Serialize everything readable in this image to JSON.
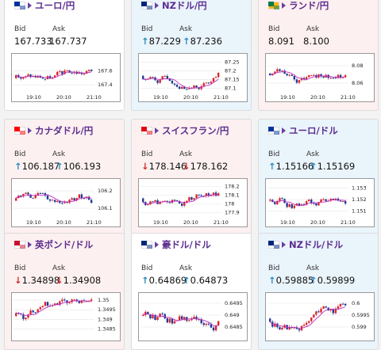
{
  "labels": {
    "bid": "Bid",
    "ask": "Ask"
  },
  "colors": {
    "up": "#2e8bbf",
    "down": "#d3312e",
    "title": "#5b2d8e",
    "candle_up": "#d9262c",
    "candle_down": "#1f3a93",
    "ma": "#c02fc0"
  },
  "cards": [
    {
      "title": "ユーロ/円",
      "flag": "eu",
      "bid": "167.733",
      "ask": "167.737",
      "dir": "",
      "bg": "white",
      "x_ticks": [
        "19:10",
        "20:10",
        "21:10"
      ],
      "y_ticks": [
        "167.6",
        "167.4"
      ],
      "y_range": [
        167.3,
        167.8
      ],
      "seed": 3
    },
    {
      "title": "NZドル/円",
      "flag": "nz",
      "bid": "87.229",
      "ask": "87.236",
      "dir": "up",
      "bg": "blue",
      "x_ticks": [
        "19:10",
        "20:10",
        "21:10"
      ],
      "y_ticks": [
        "87.25",
        "87.2",
        "87.15",
        "87.1"
      ],
      "y_range": [
        87.08,
        87.28
      ],
      "seed": 7
    },
    {
      "title": "ランド/円",
      "flag": "za",
      "bid": "8.091",
      "ask": "8.100",
      "dir": "",
      "bg": "pink",
      "x_ticks": [
        "19:10",
        "20:10",
        "21:10"
      ],
      "y_ticks": [
        "8.08",
        "8.06"
      ],
      "y_range": [
        8.05,
        8.09
      ],
      "seed": 11
    },
    {
      "title": "カナダドル/円",
      "flag": "ca",
      "bid": "106.187",
      "ask": "106.193",
      "dir": "up",
      "bg": "pink",
      "x_ticks": [
        "19:10",
        "20:10",
        "21:10"
      ],
      "y_ticks": [
        "106.2",
        "106.1"
      ],
      "y_range": [
        106.05,
        106.25
      ],
      "seed": 13
    },
    {
      "title": "スイスフラン/円",
      "flag": "ch",
      "bid": "178.146",
      "ask": "178.162",
      "dir": "down",
      "bg": "pink",
      "x_ticks": [
        "19:10",
        "20:10",
        "21:10"
      ],
      "y_ticks": [
        "178.2",
        "178.1",
        "178",
        "177.9"
      ],
      "y_range": [
        177.85,
        178.25
      ],
      "seed": 17
    },
    {
      "title": "ユーロ/ドル",
      "flag": "eu",
      "bid": "1.15166",
      "ask": "1.15169",
      "dir": "up",
      "bg": "blue",
      "x_ticks": [
        "19:10",
        "20:10",
        "21:10"
      ],
      "y_ticks": [
        "1.153",
        "1.152",
        "1.151"
      ],
      "y_range": [
        1.1505,
        1.1535
      ],
      "seed": 19
    },
    {
      "title": "英ポンド/ドル",
      "flag": "gb",
      "bid": "1.34898",
      "ask": "1.34908",
      "dir": "down",
      "bg": "pink",
      "x_ticks": [],
      "y_ticks": [
        "1.35",
        "1.3495",
        "1.349",
        "1.3485"
      ],
      "y_range": [
        1.348,
        1.3502
      ],
      "seed": 23
    },
    {
      "title": "豪ドル/ドル",
      "flag": "au",
      "bid": "0.64869",
      "ask": "0.64873",
      "dir": "up",
      "bg": "white",
      "x_ticks": [],
      "y_ticks": [
        "0.6495",
        "0.649",
        "0.6485"
      ],
      "y_range": [
        0.648,
        0.6498
      ],
      "seed": 29
    },
    {
      "title": "NZドル/ドル",
      "flag": "nz",
      "bid": "0.59885",
      "ask": "0.59899",
      "dir": "up",
      "bg": "blue",
      "x_ticks": [],
      "y_ticks": [
        "0.6",
        "0.5995",
        "0.599"
      ],
      "y_range": [
        0.5985,
        0.6003
      ],
      "seed": 31
    }
  ]
}
